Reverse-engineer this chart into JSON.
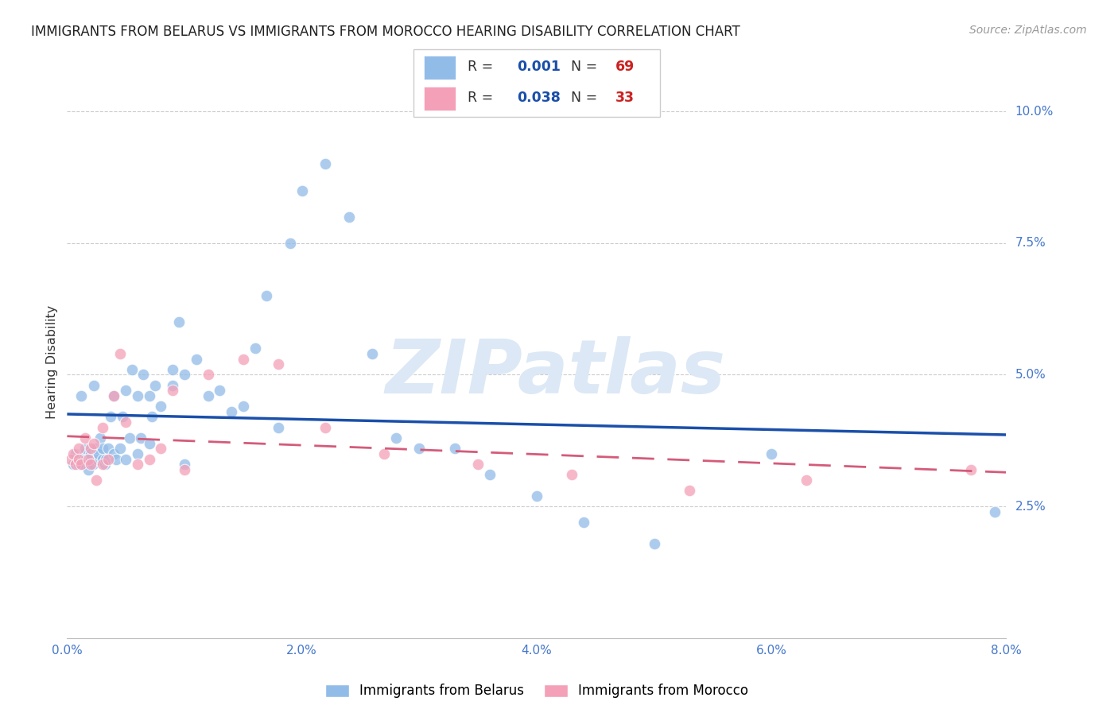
{
  "title": "IMMIGRANTS FROM BELARUS VS IMMIGRANTS FROM MOROCCO HEARING DISABILITY CORRELATION CHART",
  "source": "Source: ZipAtlas.com",
  "xlabel_ticks": [
    "0.0%",
    "",
    "2.0%",
    "",
    "4.0%",
    "",
    "6.0%",
    "",
    "8.0%"
  ],
  "xlabel_values": [
    0.0,
    0.01,
    0.02,
    0.03,
    0.04,
    0.05,
    0.06,
    0.07,
    0.08
  ],
  "ylabel_ticks": [
    "2.5%",
    "5.0%",
    "7.5%",
    "10.0%"
  ],
  "ylabel_values": [
    0.025,
    0.05,
    0.075,
    0.1
  ],
  "xlim": [
    0.0,
    0.08
  ],
  "ylim": [
    0.0,
    0.105
  ],
  "belarus_label": "Immigrants from Belarus",
  "morocco_label": "Immigrants from Morocco",
  "belarus_R": "0.001",
  "belarus_N": "69",
  "morocco_R": "0.038",
  "morocco_N": "33",
  "belarus_color": "#92bce8",
  "morocco_color": "#f4a0b8",
  "belarus_line_color": "#1a4faa",
  "morocco_line_color": "#d45b7a",
  "watermark": "ZIPatlas",
  "watermark_color": "#dce8f5",
  "belarus_x": [
    0.0005,
    0.0007,
    0.001,
    0.001,
    0.0012,
    0.0013,
    0.0015,
    0.0015,
    0.0016,
    0.0018,
    0.002,
    0.002,
    0.0022,
    0.0023,
    0.0025,
    0.0026,
    0.0027,
    0.0028,
    0.003,
    0.003,
    0.0032,
    0.0033,
    0.0035,
    0.0037,
    0.004,
    0.004,
    0.0042,
    0.0045,
    0.0047,
    0.005,
    0.005,
    0.0053,
    0.0055,
    0.006,
    0.006,
    0.0063,
    0.0065,
    0.007,
    0.007,
    0.0072,
    0.0075,
    0.008,
    0.009,
    0.009,
    0.0095,
    0.01,
    0.01,
    0.011,
    0.012,
    0.013,
    0.014,
    0.015,
    0.016,
    0.017,
    0.018,
    0.019,
    0.02,
    0.022,
    0.024,
    0.026,
    0.028,
    0.03,
    0.033,
    0.036,
    0.04,
    0.044,
    0.05,
    0.06,
    0.079
  ],
  "belarus_y": [
    0.033,
    0.035,
    0.034,
    0.033,
    0.046,
    0.033,
    0.035,
    0.036,
    0.034,
    0.032,
    0.034,
    0.035,
    0.033,
    0.048,
    0.036,
    0.034,
    0.035,
    0.038,
    0.034,
    0.036,
    0.033,
    0.034,
    0.036,
    0.042,
    0.035,
    0.046,
    0.034,
    0.036,
    0.042,
    0.034,
    0.047,
    0.038,
    0.051,
    0.035,
    0.046,
    0.038,
    0.05,
    0.037,
    0.046,
    0.042,
    0.048,
    0.044,
    0.051,
    0.048,
    0.06,
    0.033,
    0.05,
    0.053,
    0.046,
    0.047,
    0.043,
    0.044,
    0.055,
    0.065,
    0.04,
    0.075,
    0.085,
    0.09,
    0.08,
    0.054,
    0.038,
    0.036,
    0.036,
    0.031,
    0.027,
    0.022,
    0.018,
    0.035,
    0.024
  ],
  "morocco_x": [
    0.0003,
    0.0005,
    0.0007,
    0.001,
    0.001,
    0.0012,
    0.0015,
    0.0018,
    0.002,
    0.002,
    0.0023,
    0.0025,
    0.003,
    0.003,
    0.0035,
    0.004,
    0.0045,
    0.005,
    0.006,
    0.007,
    0.008,
    0.009,
    0.01,
    0.012,
    0.015,
    0.018,
    0.022,
    0.027,
    0.035,
    0.043,
    0.053,
    0.063,
    0.077
  ],
  "morocco_y": [
    0.034,
    0.035,
    0.033,
    0.036,
    0.034,
    0.033,
    0.038,
    0.034,
    0.036,
    0.033,
    0.037,
    0.03,
    0.04,
    0.033,
    0.034,
    0.046,
    0.054,
    0.041,
    0.033,
    0.034,
    0.036,
    0.047,
    0.032,
    0.05,
    0.053,
    0.052,
    0.04,
    0.035,
    0.033,
    0.031,
    0.028,
    0.03,
    0.032
  ],
  "belarus_line_y_intercept": 0.034,
  "belarus_line_slope": 0.02,
  "morocco_line_y_intercept": 0.034,
  "morocco_line_slope": -0.02
}
